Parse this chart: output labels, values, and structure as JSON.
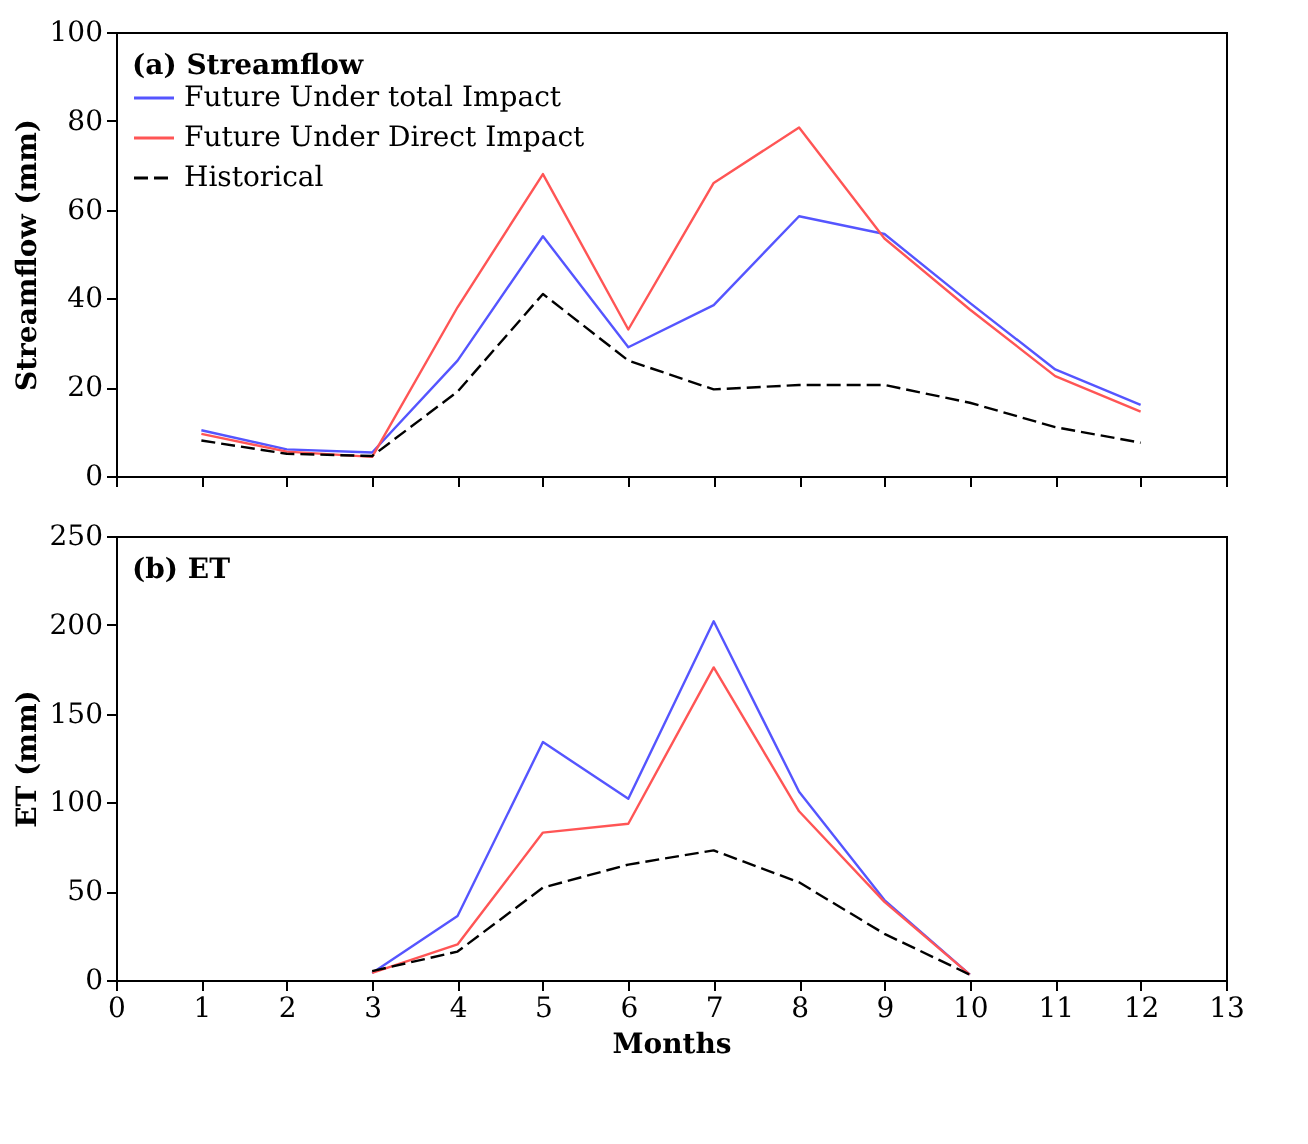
{
  "chart_data": [
    {
      "type": "line",
      "title": "(a) Streamflow",
      "ylabel": "Streamflow (mm)",
      "xlim": [
        0,
        13
      ],
      "xticks": [
        0,
        1,
        2,
        3,
        4,
        5,
        6,
        7,
        8,
        9,
        10,
        11,
        12,
        13
      ],
      "ylim": [
        0,
        100
      ],
      "yticks": [
        0,
        20,
        40,
        60,
        80,
        100
      ],
      "tick_labels": "y",
      "legend": "top left",
      "grid": false,
      "series": [
        {
          "name": "Future Under total Impact",
          "color": "#5555ff",
          "line_style": "solid",
          "x": [
            1,
            2,
            3,
            4,
            5,
            6,
            7,
            8,
            9,
            10,
            11,
            12
          ],
          "values": [
            10.3,
            6,
            5.3,
            26,
            54,
            29,
            38.5,
            58.5,
            54.5,
            39,
            24,
            16
          ]
        },
        {
          "name": "Future Under Direct Impact",
          "color": "#ff5555",
          "line_style": "solid",
          "x": [
            1,
            2,
            3,
            4,
            5,
            6,
            7,
            8,
            9,
            10,
            11,
            12
          ],
          "values": [
            9.5,
            5.5,
            4.3,
            38,
            68,
            33,
            66,
            78.5,
            53.5,
            37.5,
            22.5,
            14.5
          ]
        },
        {
          "name": "Historical",
          "color": "#000000",
          "line_style": "dashed",
          "x": [
            1,
            2,
            3,
            4,
            5,
            6,
            7,
            8,
            9,
            10,
            11,
            12
          ],
          "values": [
            8,
            5,
            4.5,
            19,
            41,
            26,
            19.5,
            20.5,
            20.5,
            16.5,
            11,
            7.5
          ]
        }
      ]
    },
    {
      "type": "line",
      "title": "(b) ET",
      "xlabel": "Months",
      "ylabel": "ET (mm)",
      "xlim": [
        0,
        13
      ],
      "xticks": [
        0,
        1,
        2,
        3,
        4,
        5,
        6,
        7,
        8,
        9,
        10,
        11,
        12,
        13
      ],
      "ylim": [
        0,
        250
      ],
      "yticks": [
        0,
        50,
        100,
        150,
        200,
        250
      ],
      "legend": false,
      "grid": false,
      "series": [
        {
          "color": "#5555ff",
          "line_style": "solid",
          "x": [
            3,
            4,
            5,
            6,
            7,
            8,
            9,
            10
          ],
          "values": [
            4,
            36,
            134,
            102,
            202,
            106,
            45,
            3
          ]
        },
        {
          "color": "#ff5555",
          "line_style": "solid",
          "x": [
            3,
            4,
            5,
            6,
            7,
            8,
            9,
            10
          ],
          "values": [
            4,
            20,
            83,
            88,
            176,
            95,
            44,
            3
          ]
        },
        {
          "color": "#000000",
          "line_style": "dashed",
          "x": [
            3,
            4,
            5,
            6,
            7,
            8,
            9,
            10
          ],
          "values": [
            5,
            16,
            52,
            65,
            73,
            55,
            26,
            3
          ]
        }
      ]
    }
  ]
}
